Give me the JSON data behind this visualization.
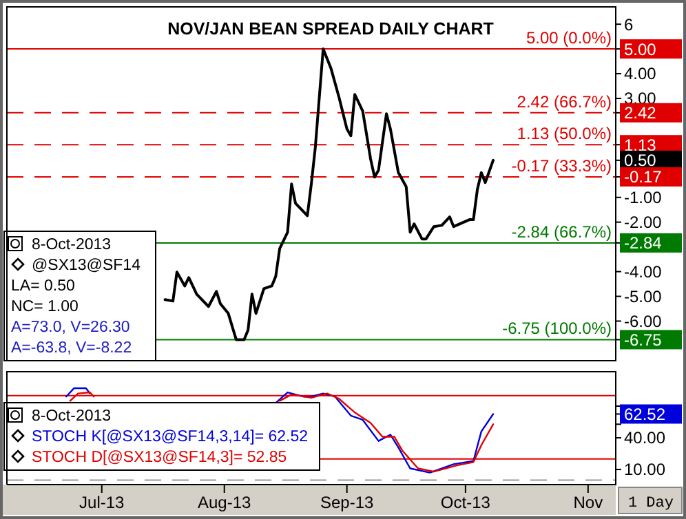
{
  "chart_data": [
    {
      "type": "line",
      "title": "NOV/JAN BEAN SPREAD DAILY CHART",
      "xlim": [
        "2013-06-07",
        "2013-11-08"
      ],
      "ylim": [
        -7.6,
        6.7
      ],
      "yticks": [
        6,
        {
          "value": 5,
          "label": "5.00"
        },
        {
          "value": 4,
          "label": "4.00"
        },
        {
          "value": 3,
          "label": "3.00"
        },
        {
          "value": 2.42,
          "label": "2.42"
        },
        {
          "value": 1.13,
          "label": "1.13"
        },
        {
          "value": 0.5,
          "label": "0.50"
        },
        {
          "value": -0.17,
          "label": "-0.17"
        },
        {
          "value": -1,
          "label": "-1.00"
        },
        {
          "value": -2,
          "label": "-2.00"
        },
        {
          "value": -2.84,
          "label": "-2.84"
        },
        {
          "value": -4,
          "label": "-4.00"
        },
        {
          "value": -5,
          "label": "-5.00"
        },
        {
          "value": -6,
          "label": "-6.00"
        },
        {
          "value": -6.75,
          "label": "-6.75"
        }
      ],
      "tick_labels": "y",
      "legend": "bottom left",
      "series": [
        {
          "name": "@SX13@SF14",
          "color": "#000000",
          "x": [
            "2013-07-17",
            "2013-07-19",
            "2013-07-20",
            "2013-07-22",
            "2013-07-23",
            "2013-07-25",
            "2013-07-28",
            "2013-07-30",
            "2013-07-31",
            "2013-08-02",
            "2013-08-04",
            "2013-08-06",
            "2013-08-07",
            "2013-08-08",
            "2013-08-09",
            "2013-08-11",
            "2013-08-13",
            "2013-08-14",
            "2013-08-15",
            "2013-08-17",
            "2013-08-18",
            "2013-08-19",
            "2013-08-22",
            "2013-08-23",
            "2013-08-24",
            "2013-08-26",
            "2013-08-28",
            "2013-08-30",
            "2013-09-01",
            "2013-09-02",
            "2013-09-03",
            "2013-09-05",
            "2013-09-07",
            "2013-09-08",
            "2013-09-09",
            "2013-09-11",
            "2013-09-12",
            "2013-09-14",
            "2013-09-16",
            "2013-09-17",
            "2013-09-18",
            "2013-09-20",
            "2013-09-21",
            "2013-09-23",
            "2013-09-25",
            "2013-09-27",
            "2013-09-28",
            "2013-10-02",
            "2013-10-03",
            "2013-10-04",
            "2013-10-05",
            "2013-10-06",
            "2013-10-08"
          ],
          "values": [
            -5.13,
            -5.19,
            -4.02,
            -4.58,
            -4.24,
            -4.91,
            -5.41,
            -4.8,
            -5.3,
            -5.69,
            -6.75,
            -6.75,
            -6.36,
            -4.91,
            -5.69,
            -4.69,
            -4.58,
            -4.19,
            -3.07,
            -2.41,
            -0.46,
            -1.24,
            -1.74,
            -0.46,
            1.0,
            5.0,
            4.2,
            3.05,
            1.77,
            1.49,
            3.16,
            2.49,
            0.55,
            -0.18,
            0.1,
            2.38,
            1.77,
            0.01,
            -0.57,
            -2.41,
            -2.07,
            -2.68,
            -2.68,
            -2.18,
            -2.13,
            -1.79,
            -2.18,
            -1.9,
            -1.9,
            -0.68,
            0.0,
            -0.4,
            0.5
          ]
        }
      ],
      "ref_lines": [
        {
          "axis": "y",
          "value": 5,
          "label": "5.00 (0.0%)",
          "color": "#e00000",
          "line_style": "solid"
        },
        {
          "axis": "y",
          "value": 2.42,
          "label": "2.42 (66.7%)",
          "color": "#e00000",
          "line_style": "dashed"
        },
        {
          "axis": "y",
          "value": 1.13,
          "label": "1.13 (50.0%)",
          "color": "#e00000",
          "line_style": "dashed"
        },
        {
          "axis": "y",
          "value": -0.17,
          "label": "-0.17 (33.3%)",
          "color": "#e00000",
          "line_style": "dashed"
        },
        {
          "axis": "y",
          "value": -2.84,
          "label": "-2.84 (66.7%)",
          "color": "#007a00",
          "line_style": "solid"
        },
        {
          "axis": "y",
          "value": -6.75,
          "label": "-6.75 (100.0%)",
          "color": "#007a00",
          "line_style": "solid"
        }
      ],
      "annotations": [
        "8-Oct-2013",
        "LA= 0.50",
        "NC= 1.00",
        "A=73.0, V=26.30",
        "A=-63.8, V=-8.22"
      ]
    },
    {
      "type": "line",
      "xlim": [
        "2013-06-07",
        "2013-11-08"
      ],
      "xticks": [
        {
          "value": "2013-07-01",
          "label": "Jul-13"
        },
        {
          "value": "2013-08-01",
          "label": "Aug-13"
        },
        {
          "value": "2013-09-01",
          "label": "Sep-13"
        },
        {
          "value": "2013-10-01",
          "label": "Oct-13"
        },
        {
          "value": "2013-11-01",
          "label": "Nov"
        }
      ],
      "ylim": [
        -4.3,
        102.6
      ],
      "yticks": [
        {
          "value": 70,
          "label": null
        },
        {
          "value": 52.85,
          "label": null
        },
        {
          "value": 62.52,
          "label": "62.52"
        },
        {
          "value": 40,
          "label": "40.00"
        },
        {
          "value": 10,
          "label": "10.00"
        }
      ],
      "xlabel": "1 Day",
      "legend": "left",
      "series": [
        {
          "name": "STOCH K[@SX13@SF14,3,14]= 62.52",
          "color": "#0000dd",
          "x": [
            "2013-06-22",
            "2013-06-24",
            "2013-06-27",
            "2013-06-28",
            "2013-07-15",
            "2013-08-14",
            "2013-08-17",
            "2013-08-21",
            "2013-08-23",
            "2013-08-26",
            "2013-08-29",
            "2013-09-02",
            "2013-09-05",
            "2013-09-09",
            "2013-09-12",
            "2013-09-14",
            "2013-09-17",
            "2013-09-22",
            "2013-09-28",
            "2013-10-03",
            "2013-10-05",
            "2013-10-08"
          ],
          "values": [
            79,
            87,
            87,
            82,
            null,
            73,
            83,
            79,
            79,
            82,
            79,
            61,
            57,
            37,
            43,
            31,
            11,
            7,
            15,
            18,
            46,
            62.52
          ]
        },
        {
          "name": "STOCH D[@SX13@SF14,3]= 52.85",
          "color": "#e00000",
          "x": [
            "2013-06-23",
            "2013-06-25",
            "2013-06-28",
            "2013-06-29",
            "2013-07-15",
            "2013-08-15",
            "2013-08-18",
            "2013-08-23",
            "2013-08-27",
            "2013-08-30",
            "2013-09-03",
            "2013-09-07",
            "2013-09-10",
            "2013-09-13",
            "2013-09-15",
            "2013-09-19",
            "2013-09-23",
            "2013-09-29",
            "2013-10-03",
            "2013-10-05",
            "2013-10-08"
          ],
          "values": [
            75,
            82,
            83,
            79,
            null,
            75,
            81,
            78,
            82,
            77,
            64,
            54,
            41,
            41,
            28,
            11,
            8,
            14,
            17,
            33,
            52.85
          ]
        }
      ],
      "ref_lines": [
        {
          "axis": "y",
          "value": 80,
          "color": "#e00000",
          "line_style": "solid"
        },
        {
          "axis": "y",
          "value": 20,
          "color": "#e00000",
          "line_style": "solid"
        },
        {
          "axis": "y",
          "value": 0,
          "color": "#999999",
          "line_style": "dashed"
        }
      ],
      "annotations": [
        "8-Oct-2013"
      ]
    }
  ]
}
